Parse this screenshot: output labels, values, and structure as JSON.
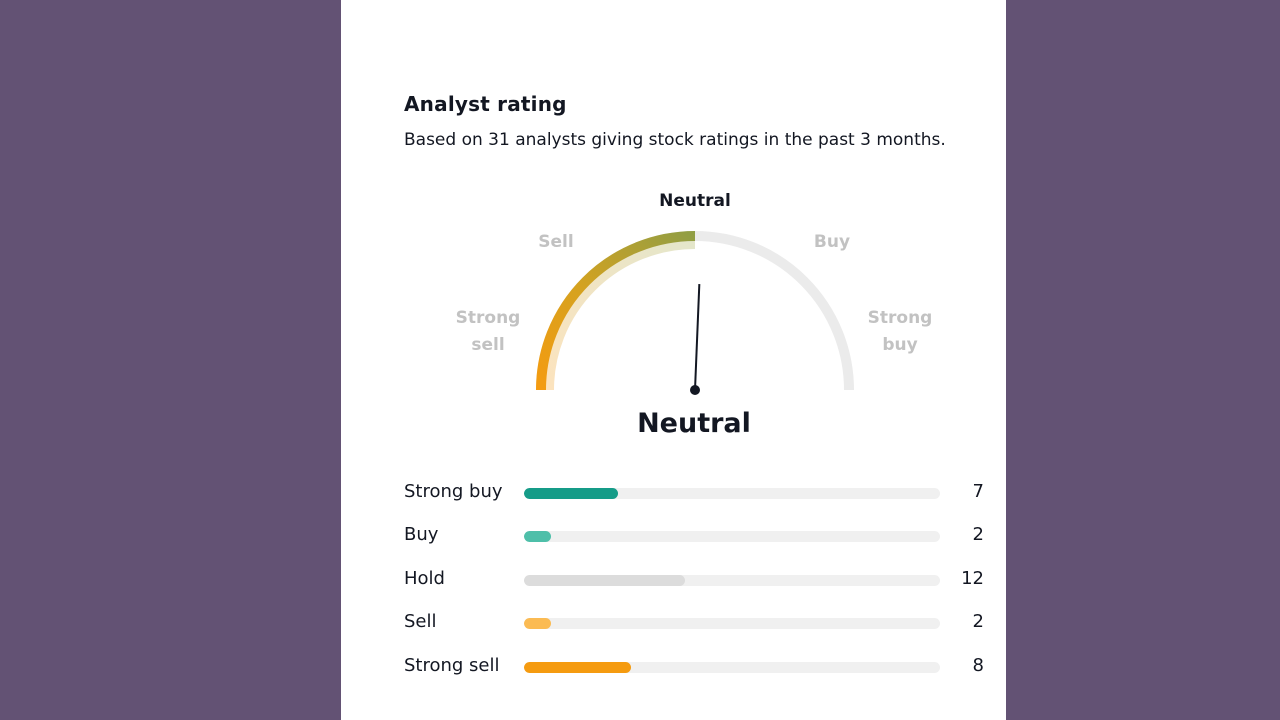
{
  "header": {
    "title": "Analyst rating",
    "subtitle": "Based on 31 analysts giving stock ratings in the past 3 months."
  },
  "gauge": {
    "labels": {
      "strong_sell_1": "Strong",
      "strong_sell_2": "sell",
      "sell": "Sell",
      "neutral": "Neutral",
      "buy": "Buy",
      "strong_buy_1": "Strong",
      "strong_buy_2": "buy"
    },
    "verdict": "Neutral",
    "needle_level": 0.51,
    "colors": {
      "strong_sell": "#f59b10",
      "neutral": "#8f9e45",
      "track": "#ebebeb"
    }
  },
  "breakdown": {
    "total": 31,
    "max": 31,
    "rows": [
      {
        "label": "Strong buy",
        "count": 7,
        "color": "#159c88"
      },
      {
        "label": "Buy",
        "count": 2,
        "color": "#4ebfa9"
      },
      {
        "label": "Hold",
        "count": 12,
        "color": "#dcdcdc"
      },
      {
        "label": "Sell",
        "count": 2,
        "color": "#fbbb53"
      },
      {
        "label": "Strong sell",
        "count": 8,
        "color": "#f59b10"
      }
    ]
  }
}
